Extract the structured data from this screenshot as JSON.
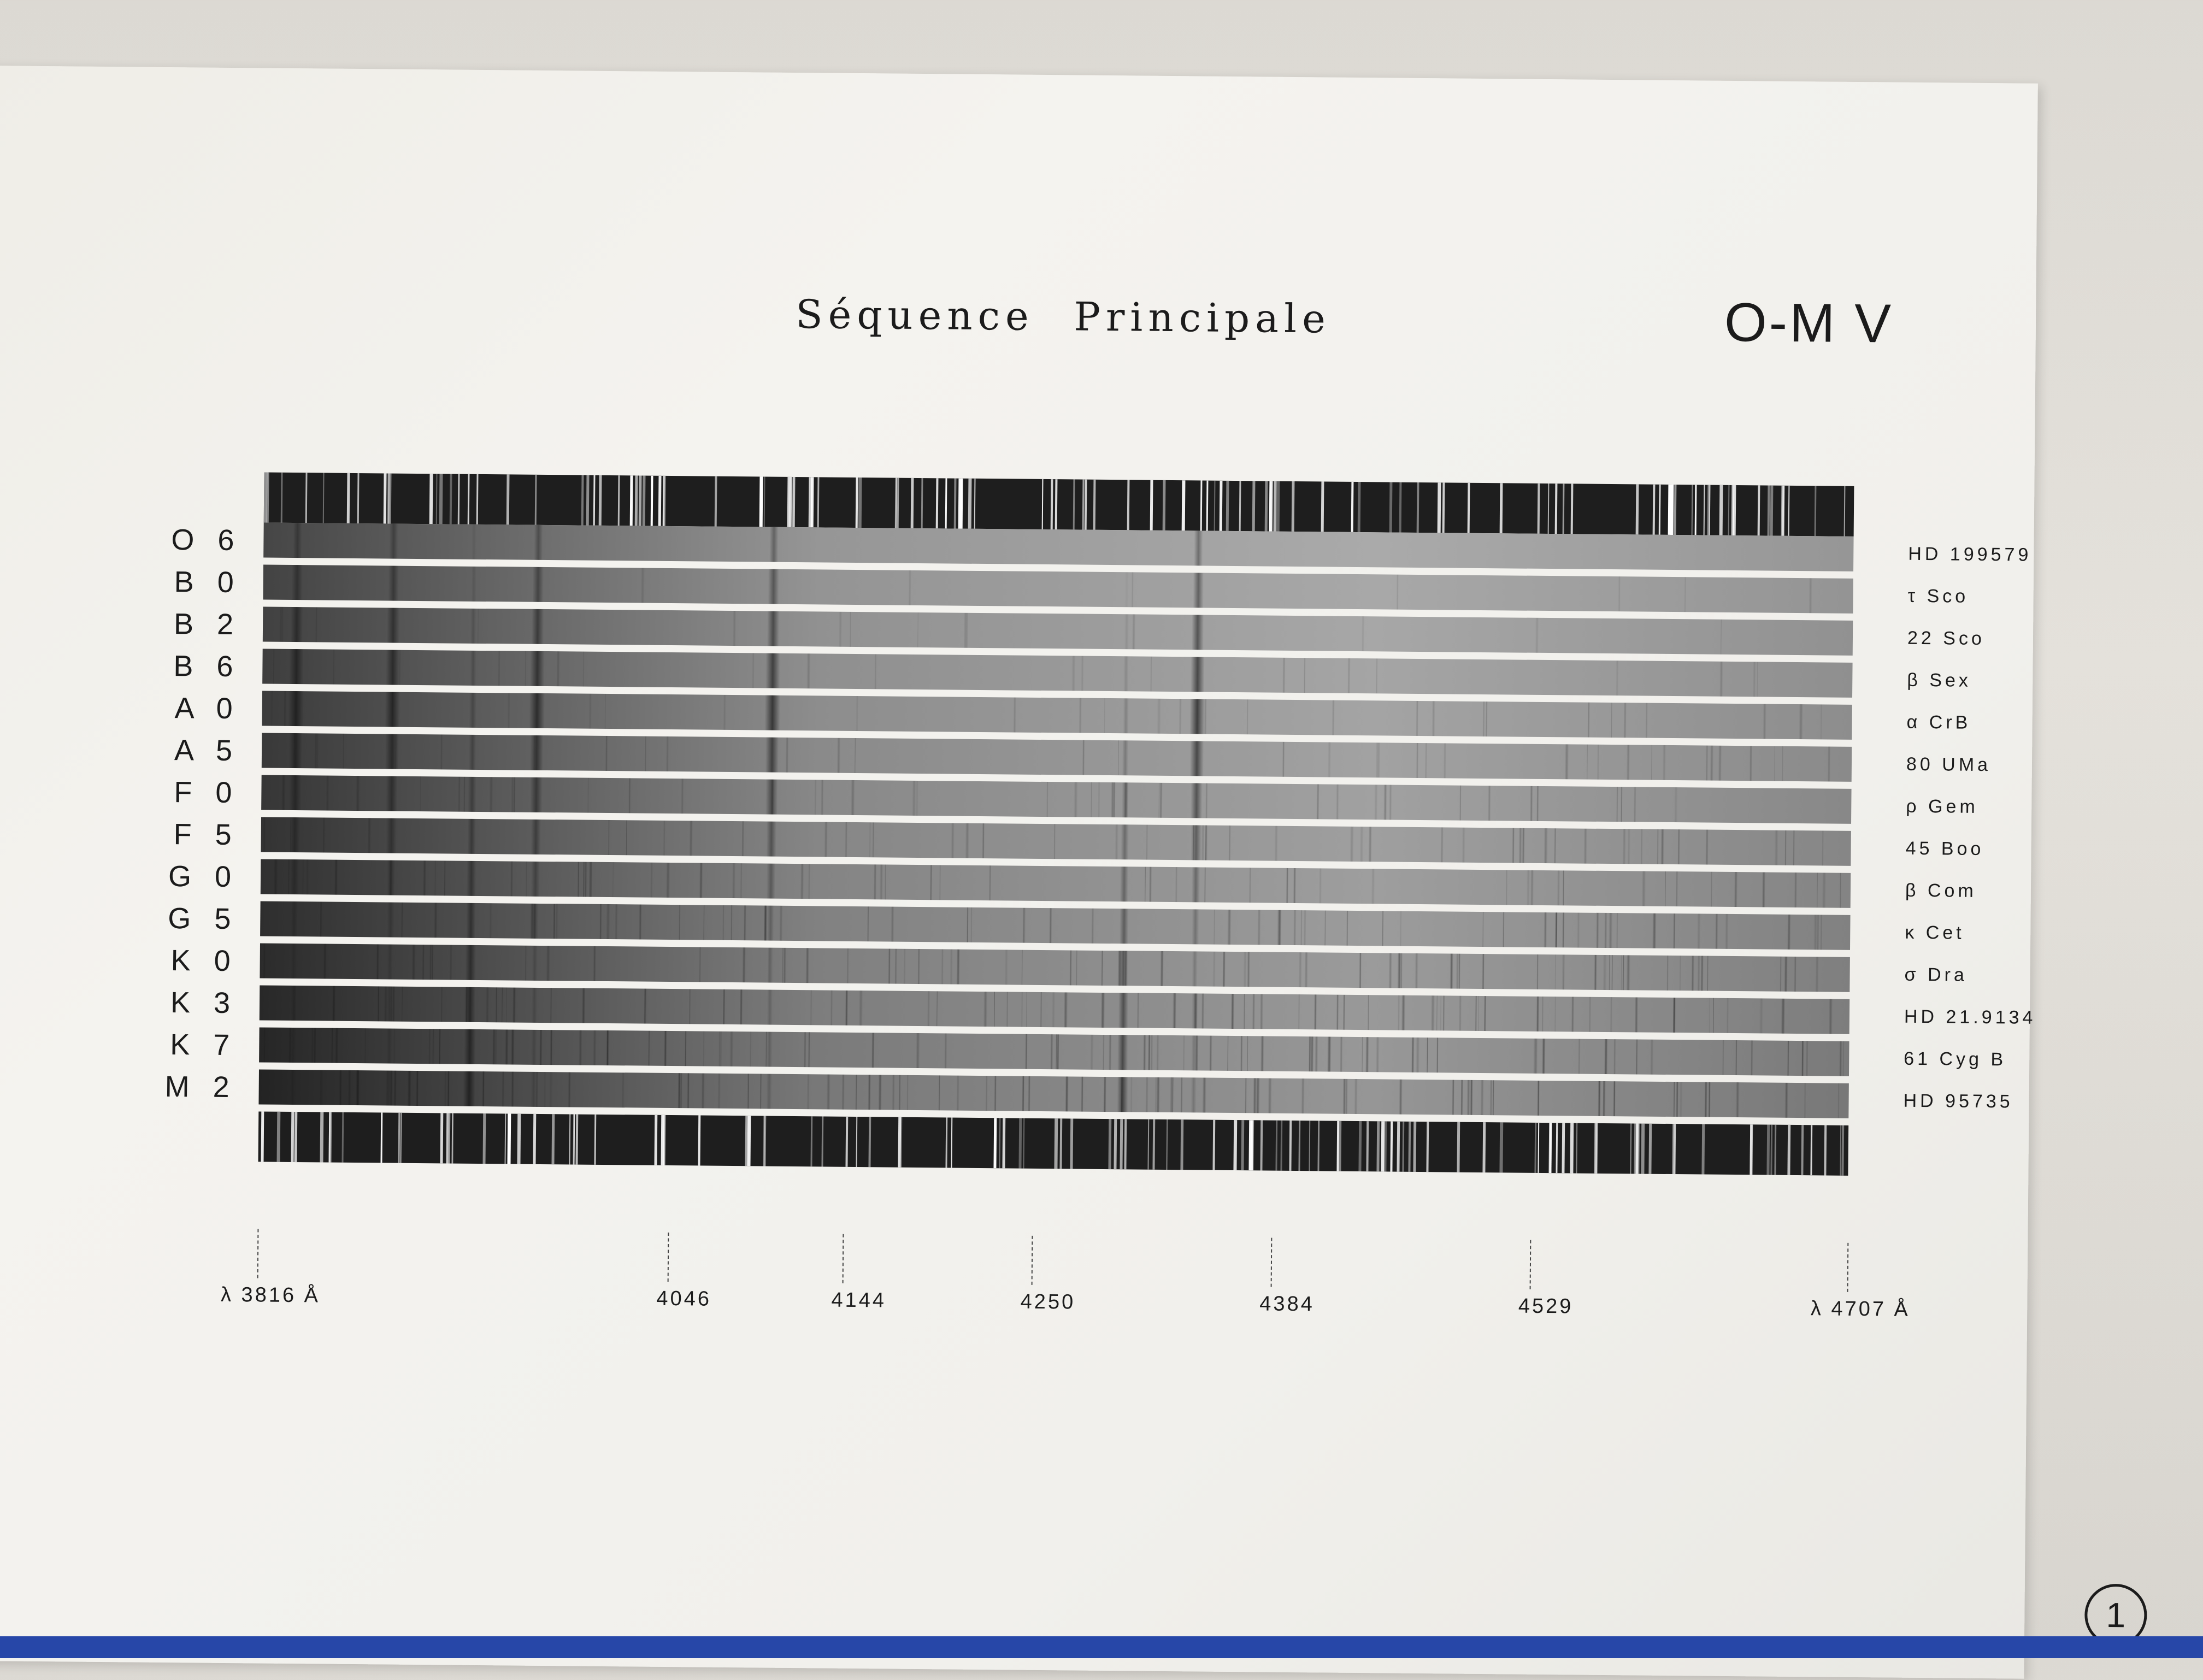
{
  "page": {
    "title": "Séquence Principale",
    "subtitle": "O-M V",
    "page_number": "1"
  },
  "spectra": {
    "rows": [
      {
        "type": "O 6",
        "star": "HD 199579"
      },
      {
        "type": "B 0",
        "star": "τ Sco"
      },
      {
        "type": "B 2",
        "star": "22 Sco"
      },
      {
        "type": "B 6",
        "star": "β Sex"
      },
      {
        "type": "A 0",
        "star": "α CrB"
      },
      {
        "type": "A 5",
        "star": "80 UMa"
      },
      {
        "type": "F 0",
        "star": "ρ Gem"
      },
      {
        "type": "F 5",
        "star": "45 Boo"
      },
      {
        "type": "G 0",
        "star": "β Com"
      },
      {
        "type": "G 5",
        "star": "κ Cet"
      },
      {
        "type": "K 0",
        "star": "σ Dra"
      },
      {
        "type": "K 3",
        "star": "HD 21.9134"
      },
      {
        "type": "K 7",
        "star": "61 Cyg B"
      },
      {
        "type": "M 2",
        "star": "HD 95735"
      }
    ],
    "wavelength_range": [
      3816,
      4707
    ],
    "wavelength_labels": [
      {
        "value": 3816,
        "label": "λ 3816 Å"
      },
      {
        "value": 4046,
        "label": "4046"
      },
      {
        "value": 4144,
        "label": "4144"
      },
      {
        "value": 4250,
        "label": "4250"
      },
      {
        "value": 4384,
        "label": "4384"
      },
      {
        "value": 4529,
        "label": "4529"
      },
      {
        "value": 4707,
        "label": "λ 4707 Å"
      }
    ]
  },
  "colors": {
    "paper": "#f2f1ed",
    "ink": "#1b1b1b",
    "cover_edge": "#2747a8"
  }
}
